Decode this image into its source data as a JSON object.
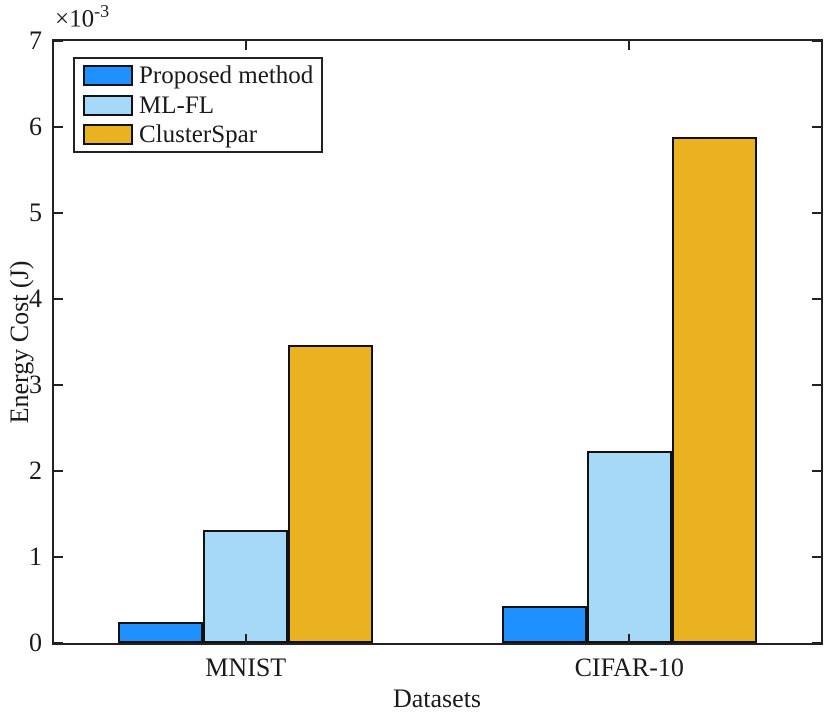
{
  "chart_data": {
    "type": "bar",
    "title": "",
    "xlabel": "Datasets",
    "ylabel": "Energy Cost (J)",
    "offset_base": "×10",
    "offset_exp": "-3",
    "categories": [
      "MNIST",
      "CIFAR-10"
    ],
    "series": [
      {
        "name": "Proposed method",
        "color": "#1E90FF",
        "values": [
          0.00025,
          0.00043
        ]
      },
      {
        "name": "ML-FL",
        "color": "#A6D8F7",
        "values": [
          0.00132,
          0.00223
        ]
      },
      {
        "name": "ClusterSpar",
        "color": "#EAB120",
        "values": [
          0.00347,
          0.00588
        ]
      }
    ],
    "ylim": [
      0,
      0.007
    ],
    "yticks_scaled": [
      0,
      1,
      2,
      3,
      4,
      5,
      6,
      7
    ],
    "ytick_scale": 0.001,
    "grid": false,
    "axes_box": true,
    "tick_direction": "in",
    "legend_position": "top-left",
    "axis_color": "#222222",
    "text_color": "#1a1a1a"
  }
}
